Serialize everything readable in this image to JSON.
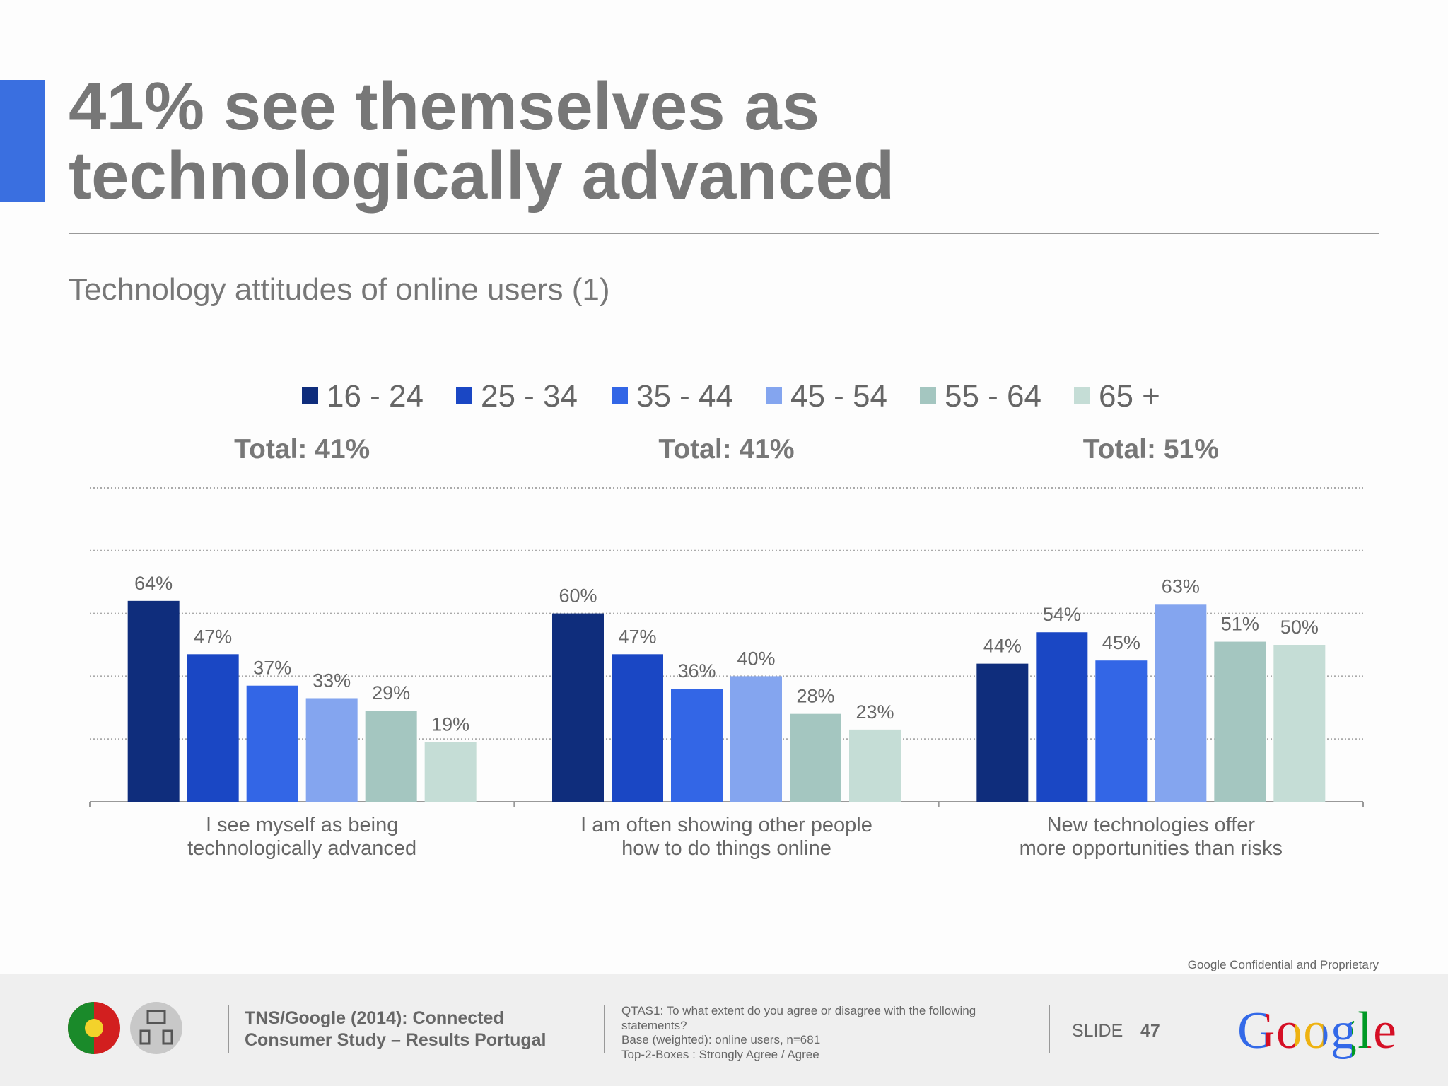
{
  "chart_data": {
    "type": "bar",
    "title": "41% see themselves as technologically advanced",
    "subtitle": "Technology attitudes of online users (1)",
    "categories": [
      "I see myself as being\ntechnologically advanced",
      "I am often showing other people\nhow to do things online",
      "New technologies offer\nmore opportunities than risks"
    ],
    "annotations": [
      "Total: 41%",
      "Total: 41%",
      "Total: 51%"
    ],
    "series": [
      {
        "name": "16 - 24",
        "color": "#0f2d7c",
        "values": [
          64,
          60,
          44
        ],
        "value_labels": [
          "64%",
          "60%",
          "44%"
        ]
      },
      {
        "name": "25 - 34",
        "color": "#1a47c4",
        "values": [
          47,
          47,
          54
        ],
        "value_labels": [
          "47%",
          "47%",
          "54%"
        ]
      },
      {
        "name": "35 - 44",
        "color": "#3366e6",
        "values": [
          37,
          36,
          45
        ],
        "value_labels": [
          "37%",
          "36%",
          "45%"
        ]
      },
      {
        "name": "45 - 54",
        "color": "#84a5ef",
        "values": [
          33,
          40,
          63
        ],
        "value_labels": [
          "33%",
          "40%",
          "63%"
        ]
      },
      {
        "name": "55 - 64",
        "color": "#a4c6c0",
        "values": [
          29,
          28,
          51
        ],
        "value_labels": [
          "29%",
          "28%",
          "51%"
        ]
      },
      {
        "name": "65 +",
        "color": "#c5ddd6",
        "values": [
          19,
          23,
          50
        ],
        "value_labels": [
          "19%",
          "23%",
          "50%"
        ]
      }
    ],
    "ylim": [
      0,
      100
    ],
    "yticks": [
      0,
      20,
      40,
      60,
      80,
      100
    ],
    "grid": true,
    "legend": "top"
  },
  "footer": {
    "confidential": "Google Confidential and Proprietary",
    "source": "TNS/Google (2014): Connected\nConsumer Study – Results Portugal",
    "notes": [
      "QTAS1: To what extent do you agree or disagree with the following statements?",
      "Base (weighted): online users, n=681",
      "Top-2-Boxes : Strongly Agree / Agree"
    ],
    "slide_label": "SLIDE",
    "slide_number": "47",
    "logo": "Google"
  }
}
